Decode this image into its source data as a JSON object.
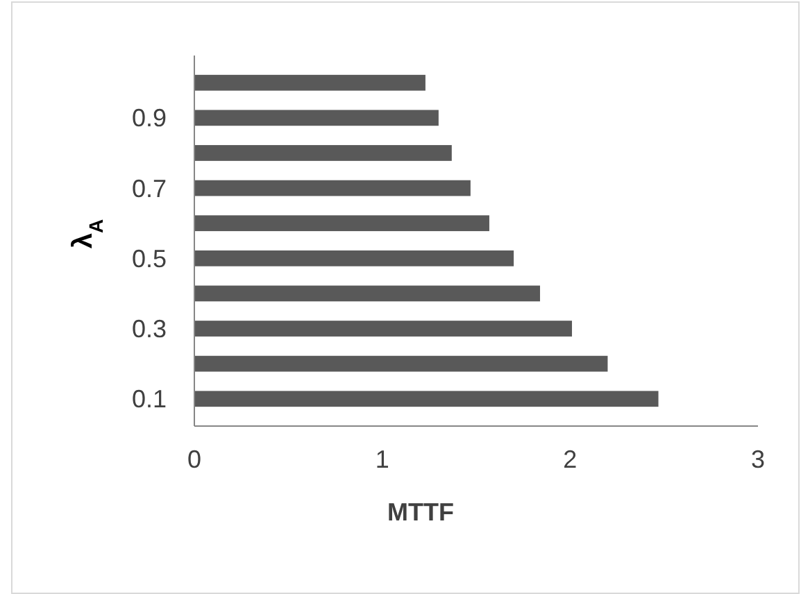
{
  "chart_data": {
    "type": "bar",
    "orientation": "horizontal",
    "xlabel": "MTTF",
    "ylabel": "λ$_{A}$",
    "categories": [
      null,
      "0.9",
      null,
      "0.7",
      null,
      "0.5",
      null,
      "0.3",
      null,
      "0.1"
    ],
    "values": [
      1.23,
      1.3,
      1.37,
      1.47,
      1.57,
      1.7,
      1.84,
      2.01,
      2.2,
      2.47
    ],
    "color": "#595959",
    "xlim": [
      0,
      3
    ],
    "xticks": [
      0,
      1,
      2,
      3
    ],
    "grid": false
  }
}
